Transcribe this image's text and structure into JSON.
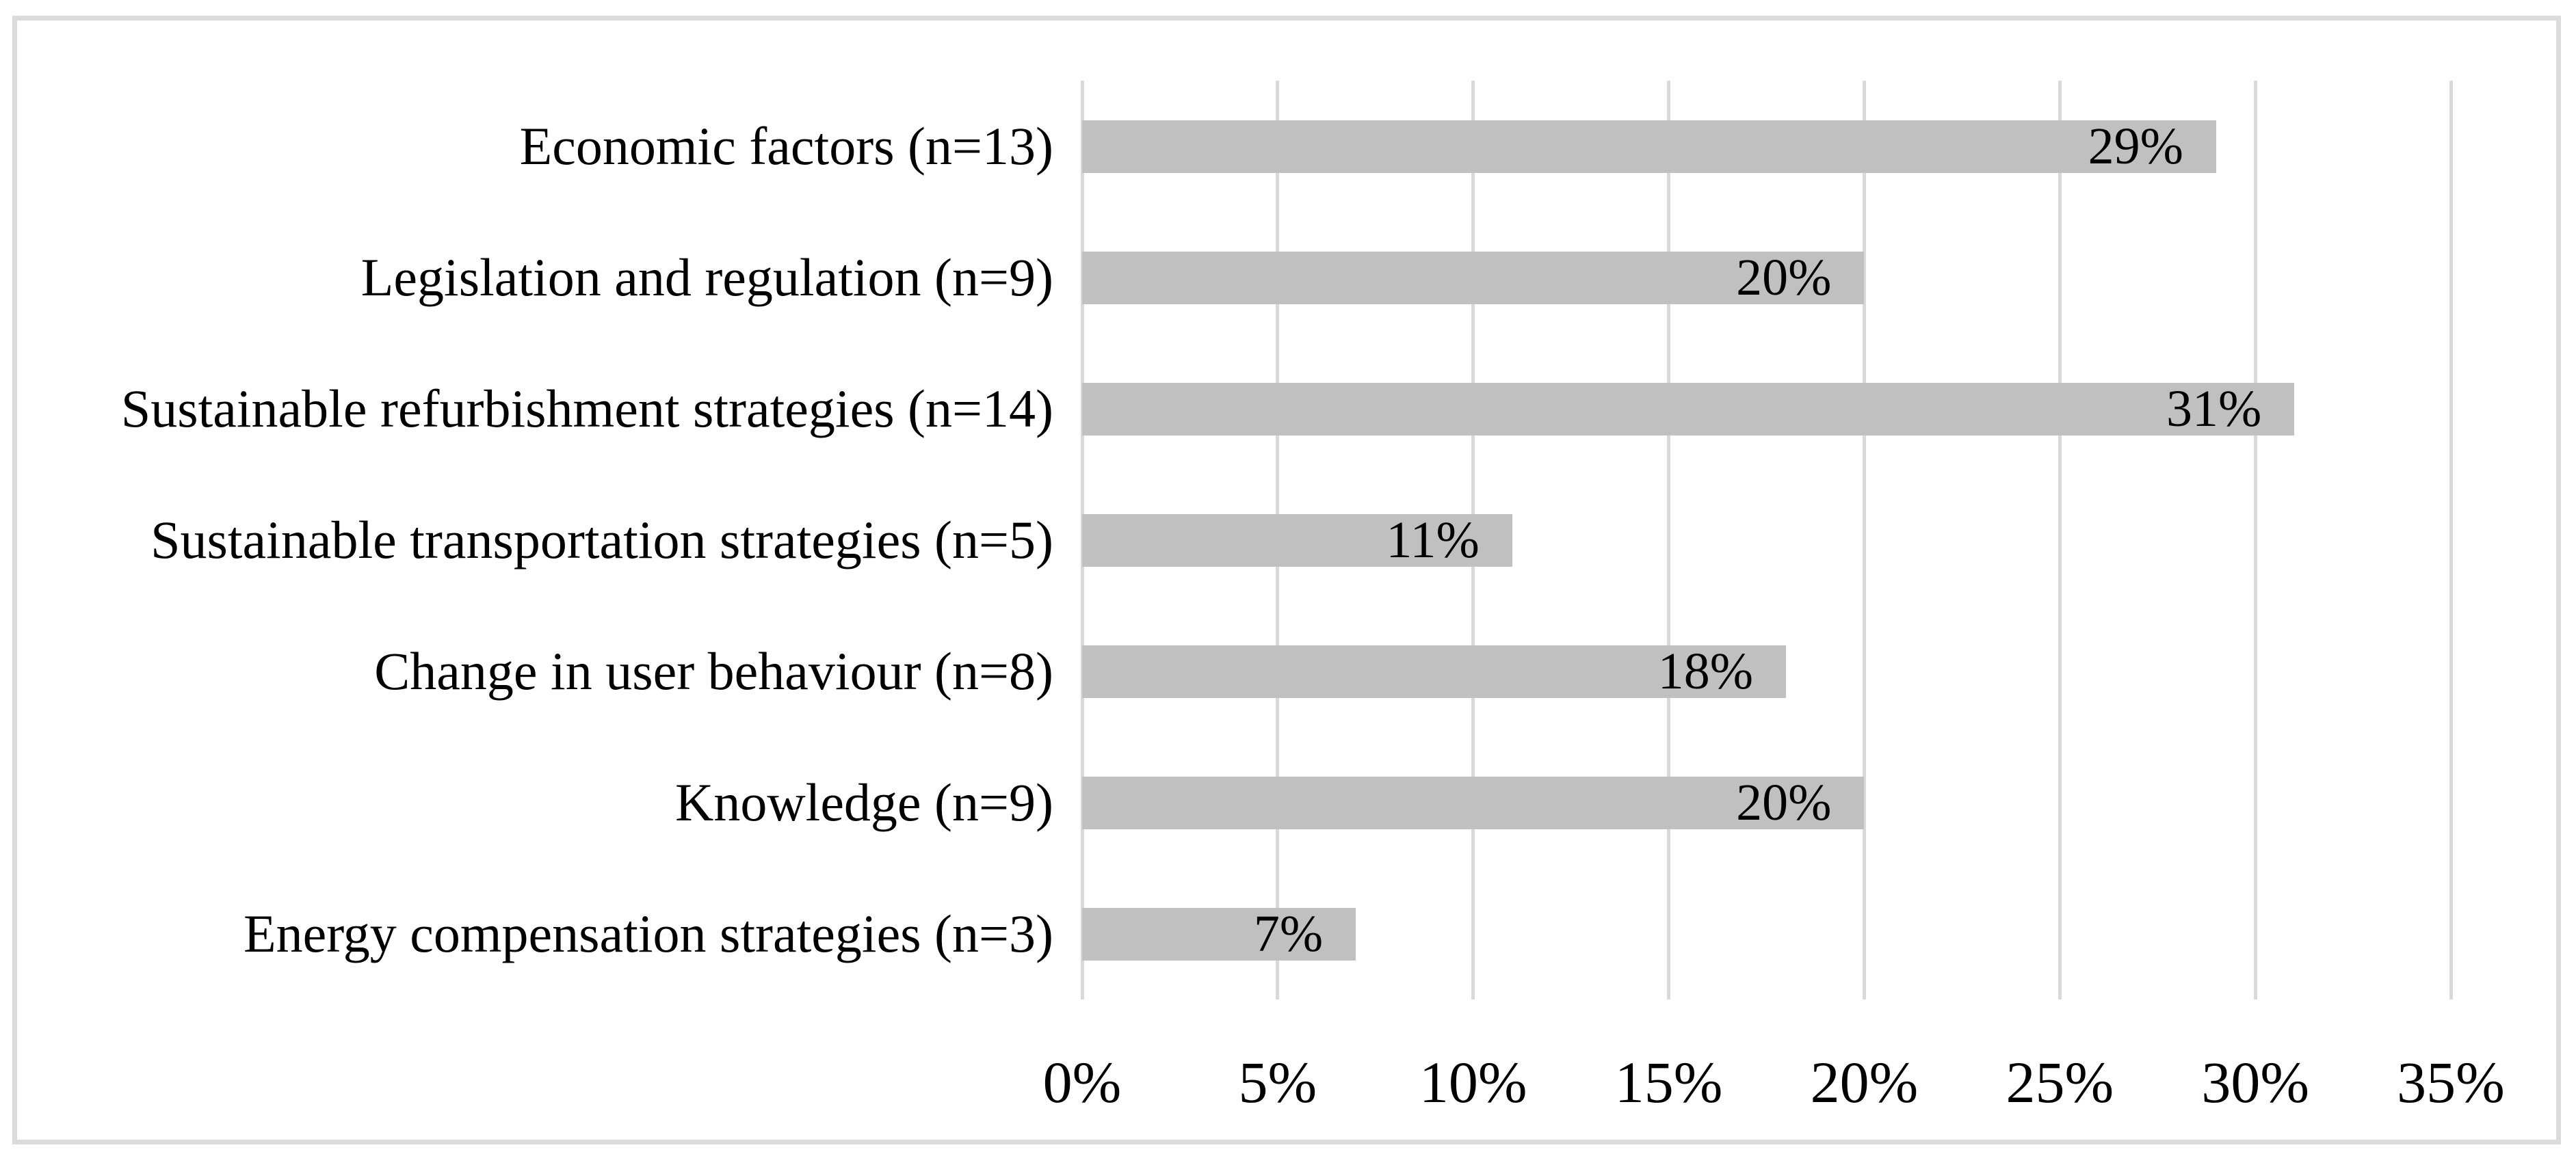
{
  "figure": {
    "background": "#FFFFFF",
    "border_color": "#DBDBDB"
  },
  "chart_data": {
    "type": "bar",
    "orientation": "horizontal",
    "title": "",
    "xlabel": "",
    "ylabel": "",
    "legend": "none",
    "grid": "vertical-only",
    "categories": [
      "Economic factors (n=13)",
      "Legislation and regulation (n=9)",
      "Sustainable refurbishment strategies (n=14)",
      "Sustainable transportation strategies (n=5)",
      "Change in user behaviour (n=8)",
      "Knowledge (n=9)",
      "Energy compensation strategies (n=3)"
    ],
    "counts": [
      13,
      9,
      14,
      5,
      8,
      9,
      3
    ],
    "values": [
      29,
      20,
      31,
      11,
      18,
      20,
      7
    ],
    "data_labels": [
      "29%",
      "20%",
      "31%",
      "11%",
      "18%",
      "20%",
      "7%"
    ],
    "data_label_position": "inside-end",
    "x_ticks": [
      "0%",
      "5%",
      "10%",
      "15%",
      "20%",
      "25%",
      "30%",
      "35%"
    ],
    "x_tick_values": [
      0,
      5,
      10,
      15,
      20,
      25,
      30,
      35
    ],
    "xlim": [
      0,
      35
    ],
    "bar_color": "#C0C0C0",
    "gridline_color": "#D9D9D9",
    "text_color": "#000000"
  }
}
